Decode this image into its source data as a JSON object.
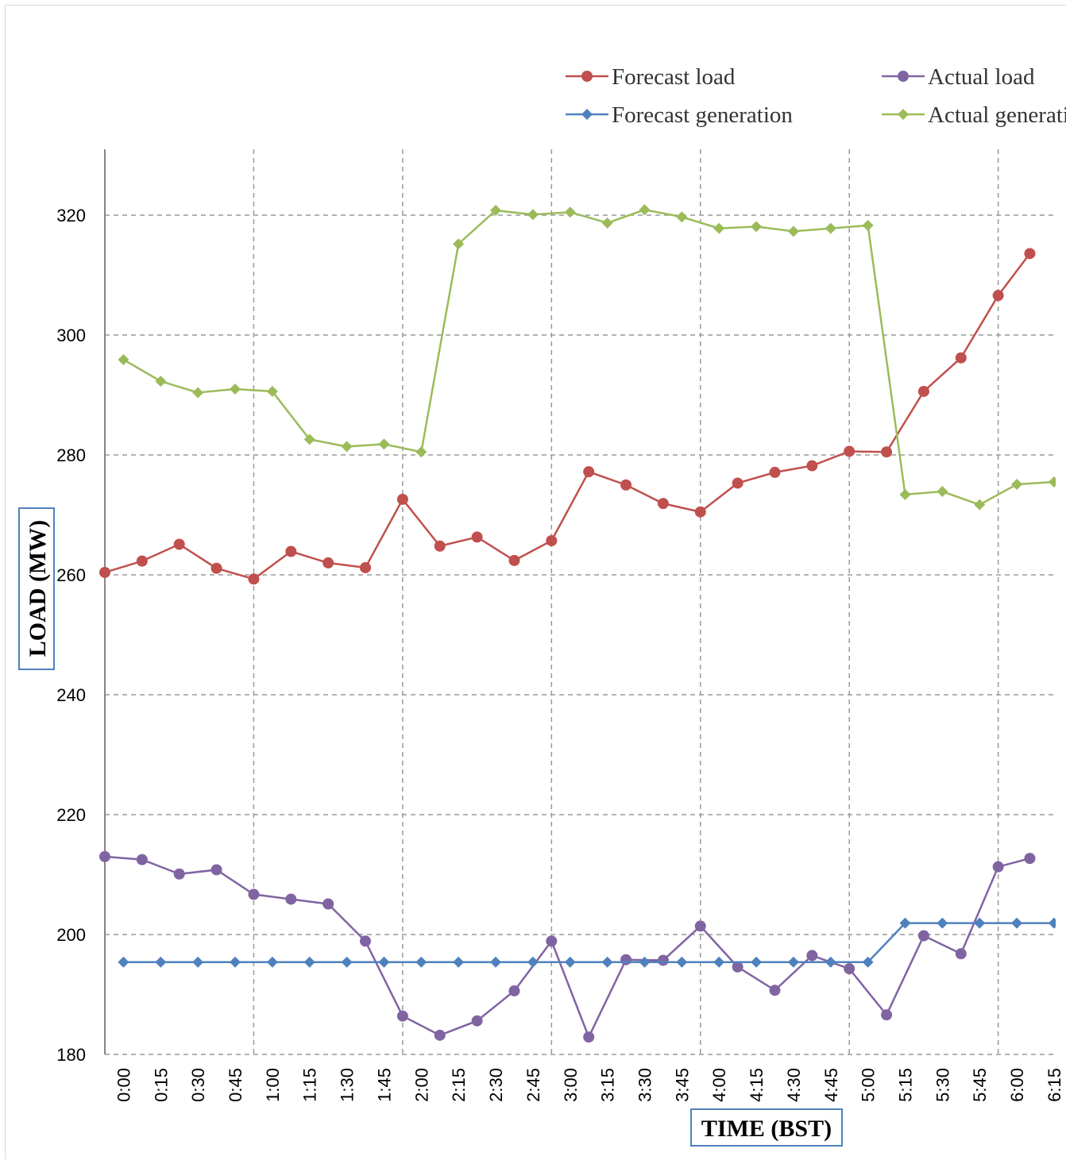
{
  "chart_data": {
    "type": "line",
    "title": "",
    "xlabel": "TIME (BST)",
    "ylabel": "LOAD (MW)",
    "ylim": [
      180,
      330
    ],
    "yticks": [
      180,
      200,
      220,
      240,
      260,
      280,
      300,
      320
    ],
    "grid": true,
    "legend_position": "top-right",
    "categories": [
      "0:00",
      "0:15",
      "0:30",
      "0:45",
      "1:00",
      "1:15",
      "1:30",
      "1:45",
      "2:00",
      "2:15",
      "2:30",
      "2:45",
      "3:00",
      "3:15",
      "3:30",
      "3:45",
      "4:00",
      "4:15",
      "4:30",
      "4:45",
      "5:00",
      "5:15",
      "5:30",
      "5:45",
      "6:00",
      "6:15"
    ],
    "series": [
      {
        "name": "Forecast load",
        "color": "#c0504d",
        "marker": "circle",
        "x": [
          0,
          1,
          2,
          3,
          4,
          5,
          6,
          7,
          8,
          9,
          10,
          11,
          12,
          13,
          14,
          15,
          16,
          17,
          18,
          19,
          20,
          21,
          22,
          23,
          24,
          24.85
        ],
        "values": [
          260.4,
          262.3,
          265.1,
          261.1,
          259.3,
          263.9,
          262.0,
          261.2,
          272.6,
          264.8,
          266.3,
          262.4,
          265.7,
          277.2,
          275.0,
          271.9,
          270.5,
          275.3,
          277.1,
          278.2,
          280.6,
          280.5,
          290.6,
          296.2,
          306.6,
          313.6
        ]
      },
      {
        "name": "Actual load",
        "color": "#8064a2",
        "marker": "circle",
        "x": [
          0,
          1,
          2,
          3,
          4,
          5,
          6,
          7,
          8,
          9,
          10,
          11,
          12,
          13,
          14,
          15,
          16,
          17,
          18,
          19,
          20,
          21,
          22,
          23,
          24,
          24.85
        ],
        "values": [
          213.0,
          212.5,
          210.1,
          210.8,
          206.7,
          205.9,
          205.1,
          198.9,
          186.4,
          183.2,
          185.6,
          190.6,
          198.9,
          182.9,
          195.8,
          195.7,
          201.4,
          194.6,
          190.7,
          196.5,
          194.3,
          186.6,
          199.8,
          196.8,
          211.3,
          212.7
        ]
      },
      {
        "name": "Forecast generation",
        "color": "#4f81bd",
        "marker": "diamond",
        "x": [
          0.5,
          1.5,
          2.5,
          3.5,
          4.5,
          5.5,
          6.5,
          7.5,
          8.5,
          9.5,
          10.5,
          11.5,
          12.5,
          13.5,
          14.5,
          15.5,
          16.5,
          17.5,
          18.5,
          19.5,
          20.5,
          21.5,
          22.5,
          23.5,
          24.5,
          25.5
        ],
        "values": [
          195.4,
          195.4,
          195.4,
          195.4,
          195.4,
          195.4,
          195.4,
          195.4,
          195.4,
          195.4,
          195.4,
          195.4,
          195.4,
          195.4,
          195.4,
          195.4,
          195.4,
          195.4,
          195.4,
          195.4,
          195.4,
          201.9,
          201.9,
          201.9,
          201.9,
          201.9
        ]
      },
      {
        "name": "Actual generation",
        "color": "#9bbb59",
        "marker": "diamond",
        "x": [
          0.5,
          1.5,
          2.5,
          3.5,
          4.5,
          5.5,
          6.5,
          7.5,
          8.5,
          9.5,
          10.5,
          11.5,
          12.5,
          13.5,
          14.5,
          15.5,
          16.5,
          17.5,
          18.5,
          19.5,
          20.5,
          21.5,
          22.5,
          23.5,
          24.5,
          25.5
        ],
        "values": [
          295.9,
          292.3,
          290.4,
          291.0,
          290.6,
          282.6,
          281.4,
          281.8,
          280.5,
          315.2,
          320.8,
          320.1,
          320.5,
          318.7,
          320.9,
          319.7,
          317.8,
          318.1,
          317.3,
          317.8,
          318.3,
          273.4,
          273.9,
          271.7,
          275.1,
          275.5
        ]
      }
    ]
  }
}
